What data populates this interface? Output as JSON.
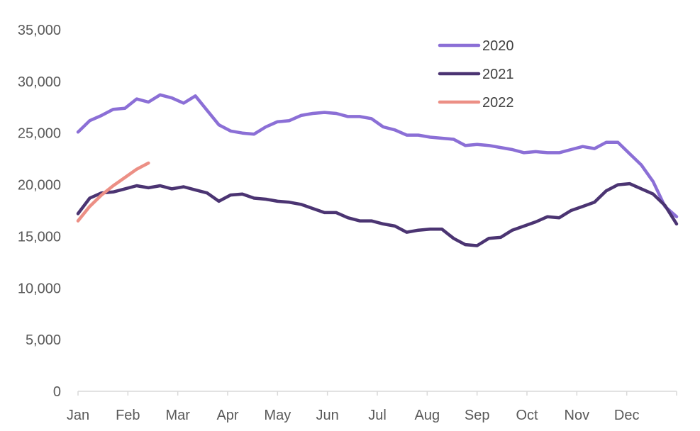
{
  "chart_data": {
    "type": "line",
    "title": "",
    "xlabel": "",
    "ylabel": "",
    "ylim": [
      0,
      35000
    ],
    "yticks": [
      "0",
      "5,000",
      "10,000",
      "15,000",
      "20,000",
      "25,000",
      "30,000",
      "35,000"
    ],
    "ytick_values": [
      0,
      5000,
      10000,
      15000,
      20000,
      25000,
      30000,
      35000
    ],
    "xticks": [
      "Jan",
      "Feb",
      "Mar",
      "Apr",
      "May",
      "Jun",
      "Jul",
      "Aug",
      "Sep",
      "Oct",
      "Nov",
      "Dec"
    ],
    "grid": false,
    "legend": "top-right",
    "series": [
      {
        "name": "2020",
        "color": "#8B6FD6",
        "values": [
          25100,
          26200,
          26700,
          27300,
          27400,
          28300,
          28000,
          28700,
          28400,
          27900,
          28600,
          27200,
          25800,
          25200,
          25000,
          24900,
          25600,
          26100,
          26200,
          26700,
          26900,
          27000,
          26900,
          26600,
          26600,
          26400,
          25600,
          25300,
          24800,
          24800,
          24600,
          24500,
          24400,
          23800,
          23900,
          23800,
          23600,
          23400,
          23100,
          23200,
          23100,
          23100,
          23400,
          23700,
          23500,
          24100,
          24100,
          23000,
          21900,
          20300,
          17900,
          16900
        ]
      },
      {
        "name": "2021",
        "color": "#4B3472",
        "values": [
          17200,
          18700,
          19200,
          19300,
          19600,
          19900,
          19700,
          19900,
          19600,
          19800,
          19500,
          19200,
          18400,
          19000,
          19100,
          18700,
          18600,
          18400,
          18300,
          18100,
          17700,
          17300,
          17300,
          16800,
          16500,
          16500,
          16200,
          16000,
          15400,
          15600,
          15700,
          15700,
          14800,
          14200,
          14100,
          14800,
          14900,
          15600,
          16000,
          16400,
          16900,
          16800,
          17500,
          17900,
          18300,
          19400,
          20000,
          20100,
          19600,
          19100,
          18000,
          16200
        ]
      },
      {
        "name": "2022",
        "color": "#EC8F85",
        "values": [
          16500,
          17900,
          19000,
          19900,
          20700,
          21500,
          22100
        ]
      }
    ]
  }
}
